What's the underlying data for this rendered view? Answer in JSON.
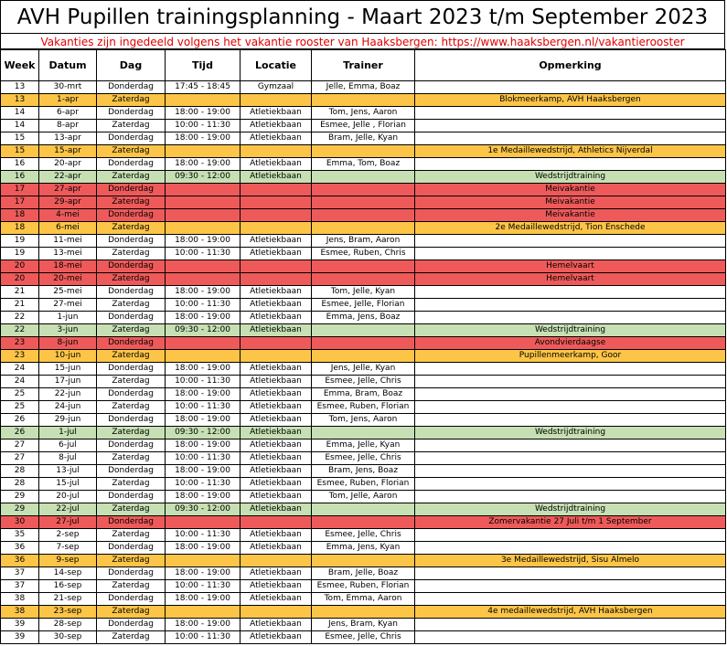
{
  "title": "AVH Pupillen trainingsplanning - Maart 2023 t/m September 2023",
  "subtitle": "Vakanties zijn ingedeeld volgens het vakantie rooster van Haaksbergen: https://www.haaksbergen.nl/vakantierooster",
  "columns": [
    "Week",
    "Datum",
    "Dag",
    "Tijd",
    "Locatie",
    "Trainer",
    "Opmerking"
  ],
  "colors": {
    "competition": "#fcc547",
    "wedstrijdtraining": "#c6e0b4",
    "vakantie": "#ee5a5a",
    "subtitle": "#e00000"
  },
  "rows": [
    {
      "week": "13",
      "datum": "30-mrt",
      "dag": "Donderdag",
      "tijd": "17:45 - 18:45",
      "locatie": "Gymzaal",
      "trainer": "Jelle, Emma, Boaz",
      "opmerking": "",
      "style": "none"
    },
    {
      "week": "13",
      "datum": "1-apr",
      "dag": "Zaterdag",
      "tijd": "",
      "locatie": "",
      "trainer": "",
      "opmerking": "Blokmeerkamp, AVH Haaksbergen",
      "style": "comp"
    },
    {
      "week": "14",
      "datum": "6-apr",
      "dag": "Donderdag",
      "tijd": "18:00 - 19:00",
      "locatie": "Atletiekbaan",
      "trainer": "Tom, Jens, Aaron",
      "opmerking": "",
      "style": "none"
    },
    {
      "week": "14",
      "datum": "8-apr",
      "dag": "Zaterdag",
      "tijd": "10:00 - 11:30",
      "locatie": "Atletiekbaan",
      "trainer": "Esmee, Jelle , Florian",
      "opmerking": "",
      "style": "none"
    },
    {
      "week": "15",
      "datum": "13-apr",
      "dag": "Donderdag",
      "tijd": "18:00 - 19:00",
      "locatie": "Atletiekbaan",
      "trainer": "Bram, Jelle, Kyan",
      "opmerking": "",
      "style": "none"
    },
    {
      "week": "15",
      "datum": "15-apr",
      "dag": "Zaterdag",
      "tijd": "",
      "locatie": "",
      "trainer": "",
      "opmerking": "1e Medaillewedstrijd, Athletics Nijverdal",
      "style": "comp"
    },
    {
      "week": "16",
      "datum": "20-apr",
      "dag": "Donderdag",
      "tijd": "18:00 - 19:00",
      "locatie": "Atletiekbaan",
      "trainer": "Emma, Tom, Boaz",
      "opmerking": "",
      "style": "none"
    },
    {
      "week": "16",
      "datum": "22-apr",
      "dag": "Zaterdag",
      "tijd": "09:30 - 12:00",
      "locatie": "Atletiekbaan",
      "trainer": "",
      "opmerking": "Wedstrijdtraining",
      "style": "green"
    },
    {
      "week": "17",
      "datum": "27-apr",
      "dag": "Donderdag",
      "tijd": "",
      "locatie": "",
      "trainer": "",
      "opmerking": "Meivakantie",
      "style": "red"
    },
    {
      "week": "17",
      "datum": "29-apr",
      "dag": "Zaterdag",
      "tijd": "",
      "locatie": "",
      "trainer": "",
      "opmerking": "Meivakantie",
      "style": "red"
    },
    {
      "week": "18",
      "datum": "4-mei",
      "dag": "Donderdag",
      "tijd": "",
      "locatie": "",
      "trainer": "",
      "opmerking": "Meivakantie",
      "style": "red"
    },
    {
      "week": "18",
      "datum": "6-mei",
      "dag": "Zaterdag",
      "tijd": "",
      "locatie": "",
      "trainer": "",
      "opmerking": "2e Medaillewedstrijd, Tion Enschede",
      "style": "comp"
    },
    {
      "week": "19",
      "datum": "11-mei",
      "dag": "Donderdag",
      "tijd": "18:00 - 19:00",
      "locatie": "Atletiekbaan",
      "trainer": "Jens, Bram, Aaron",
      "opmerking": "",
      "style": "none"
    },
    {
      "week": "19",
      "datum": "13-mei",
      "dag": "Zaterdag",
      "tijd": "10:00 - 11:30",
      "locatie": "Atletiekbaan",
      "trainer": "Esmee, Ruben, Chris",
      "opmerking": "",
      "style": "none"
    },
    {
      "week": "20",
      "datum": "18-mei",
      "dag": "Donderdag",
      "tijd": "",
      "locatie": "",
      "trainer": "",
      "opmerking": "Hemelvaart",
      "style": "red"
    },
    {
      "week": "20",
      "datum": "20-mei",
      "dag": "Zaterdag",
      "tijd": "",
      "locatie": "",
      "trainer": "",
      "opmerking": "Hemelvaart",
      "style": "red"
    },
    {
      "week": "21",
      "datum": "25-mei",
      "dag": "Donderdag",
      "tijd": "18:00 - 19:00",
      "locatie": "Atletiekbaan",
      "trainer": "Tom, Jelle, Kyan",
      "opmerking": "",
      "style": "none"
    },
    {
      "week": "21",
      "datum": "27-mei",
      "dag": "Zaterdag",
      "tijd": "10:00 - 11:30",
      "locatie": "Atletiekbaan",
      "trainer": "Esmee, Jelle, Florian",
      "opmerking": "",
      "style": "none"
    },
    {
      "week": "22",
      "datum": "1-jun",
      "dag": "Donderdag",
      "tijd": "18:00 - 19:00",
      "locatie": "Atletiekbaan",
      "trainer": "Emma, Jens, Boaz",
      "opmerking": "",
      "style": "none"
    },
    {
      "week": "22",
      "datum": "3-jun",
      "dag": "Zaterdag",
      "tijd": "09:30 - 12:00",
      "locatie": "Atletiekbaan",
      "trainer": "",
      "opmerking": "Wedstrijdtraining",
      "style": "green"
    },
    {
      "week": "23",
      "datum": "8-jun",
      "dag": "Donderdag",
      "tijd": "",
      "locatie": "",
      "trainer": "",
      "opmerking": "Avondvierdaagse",
      "style": "red"
    },
    {
      "week": "23",
      "datum": "10-jun",
      "dag": "Zaterdag",
      "tijd": "",
      "locatie": "",
      "trainer": "",
      "opmerking": "Pupillenmeerkamp, Goor",
      "style": "comp"
    },
    {
      "week": "24",
      "datum": "15-jun",
      "dag": "Donderdag",
      "tijd": "18:00 - 19:00",
      "locatie": "Atletiekbaan",
      "trainer": "Jens, Jelle, Kyan",
      "opmerking": "",
      "style": "none"
    },
    {
      "week": "24",
      "datum": "17-jun",
      "dag": "Zaterdag",
      "tijd": "10:00 - 11:30",
      "locatie": "Atletiekbaan",
      "trainer": "Esmee, Jelle, Chris",
      "opmerking": "",
      "style": "none"
    },
    {
      "week": "25",
      "datum": "22-jun",
      "dag": "Donderdag",
      "tijd": "18:00 - 19:00",
      "locatie": "Atletiekbaan",
      "trainer": "Emma, Bram, Boaz",
      "opmerking": "",
      "style": "none"
    },
    {
      "week": "25",
      "datum": "24-jun",
      "dag": "Zaterdag",
      "tijd": "10:00 - 11:30",
      "locatie": "Atletiekbaan",
      "trainer": "Esmee, Ruben, Florian",
      "opmerking": "",
      "style": "none"
    },
    {
      "week": "26",
      "datum": "29-jun",
      "dag": "Donderdag",
      "tijd": "18:00 - 19:00",
      "locatie": "Atletiekbaan",
      "trainer": "Tom, Jens, Aaron",
      "opmerking": "",
      "style": "none"
    },
    {
      "week": "26",
      "datum": "1-jul",
      "dag": "Zaterdag",
      "tijd": "09:30 - 12:00",
      "locatie": "Atletiekbaan",
      "trainer": "",
      "opmerking": "Wedstrijdtraining",
      "style": "green"
    },
    {
      "week": "27",
      "datum": "6-jul",
      "dag": "Donderdag",
      "tijd": "18:00 - 19:00",
      "locatie": "Atletiekbaan",
      "trainer": "Emma, Jelle, Kyan",
      "opmerking": "",
      "style": "none"
    },
    {
      "week": "27",
      "datum": "8-jul",
      "dag": "Zaterdag",
      "tijd": "10:00 - 11:30",
      "locatie": "Atletiekbaan",
      "trainer": "Esmee, Jelle, Chris",
      "opmerking": "",
      "style": "none"
    },
    {
      "week": "28",
      "datum": "13-jul",
      "dag": "Donderdag",
      "tijd": "18:00 - 19:00",
      "locatie": "Atletiekbaan",
      "trainer": "Bram, Jens, Boaz",
      "opmerking": "",
      "style": "none"
    },
    {
      "week": "28",
      "datum": "15-jul",
      "dag": "Zaterdag",
      "tijd": "10:00 - 11:30",
      "locatie": "Atletiekbaan",
      "trainer": "Esmee, Ruben, Florian",
      "opmerking": "",
      "style": "none"
    },
    {
      "week": "29",
      "datum": "20-jul",
      "dag": "Donderdag",
      "tijd": "18:00 - 19:00",
      "locatie": "Atletiekbaan",
      "trainer": "Tom, Jelle, Aaron",
      "opmerking": "",
      "style": "none"
    },
    {
      "week": "29",
      "datum": "22-jul",
      "dag": "Zaterdag",
      "tijd": "09:30 - 12:00",
      "locatie": "Atletiekbaan",
      "trainer": "",
      "opmerking": "Wedstrijdtraining",
      "style": "green"
    },
    {
      "week": "30",
      "datum": "27-jul",
      "dag": "Donderdag",
      "tijd": "",
      "locatie": "",
      "trainer": "",
      "opmerking": "Zomervakantie 27 Juli t/m 1 September",
      "style": "red"
    },
    {
      "week": "35",
      "datum": "2-sep",
      "dag": "Zaterdag",
      "tijd": "10:00 - 11:30",
      "locatie": "Atletiekbaan",
      "trainer": "Esmee, Jelle, Chris",
      "opmerking": "",
      "style": "none"
    },
    {
      "week": "36",
      "datum": "7-sep",
      "dag": "Donderdag",
      "tijd": "18:00 - 19:00",
      "locatie": "Atletiekbaan",
      "trainer": "Emma, Jens, Kyan",
      "opmerking": "",
      "style": "none"
    },
    {
      "week": "36",
      "datum": "9-sep",
      "dag": "Zaterdag",
      "tijd": "",
      "locatie": "",
      "trainer": "",
      "opmerking": "3e Medaillewedstrijd, Sisu Almelo",
      "style": "comp"
    },
    {
      "week": "37",
      "datum": "14-sep",
      "dag": "Donderdag",
      "tijd": "18:00 - 19:00",
      "locatie": "Atletiekbaan",
      "trainer": "Bram, Jelle, Boaz",
      "opmerking": "",
      "style": "none"
    },
    {
      "week": "37",
      "datum": "16-sep",
      "dag": "Zaterdag",
      "tijd": "10:00 - 11:30",
      "locatie": "Atletiekbaan",
      "trainer": "Esmee, Ruben, Florian",
      "opmerking": "",
      "style": "none"
    },
    {
      "week": "38",
      "datum": "21-sep",
      "dag": "Donderdag",
      "tijd": "18:00 - 19:00",
      "locatie": "Atletiekbaan",
      "trainer": "Tom, Emma, Aaron",
      "opmerking": "",
      "style": "none"
    },
    {
      "week": "38",
      "datum": "23-sep",
      "dag": "Zaterdag",
      "tijd": "",
      "locatie": "",
      "trainer": "",
      "opmerking": "4e medaillewedstrijd, AVH Haaksbergen",
      "style": "comp"
    },
    {
      "week": "39",
      "datum": "28-sep",
      "dag": "Donderdag",
      "tijd": "18:00 - 19:00",
      "locatie": "Atletiekbaan",
      "trainer": "Jens, Bram, Kyan",
      "opmerking": "",
      "style": "none"
    },
    {
      "week": "39",
      "datum": "30-sep",
      "dag": "Zaterdag",
      "tijd": "10:00 - 11:30",
      "locatie": "Atletiekbaan",
      "trainer": "Esmee, Jelle, Chris",
      "opmerking": "",
      "style": "none"
    }
  ]
}
